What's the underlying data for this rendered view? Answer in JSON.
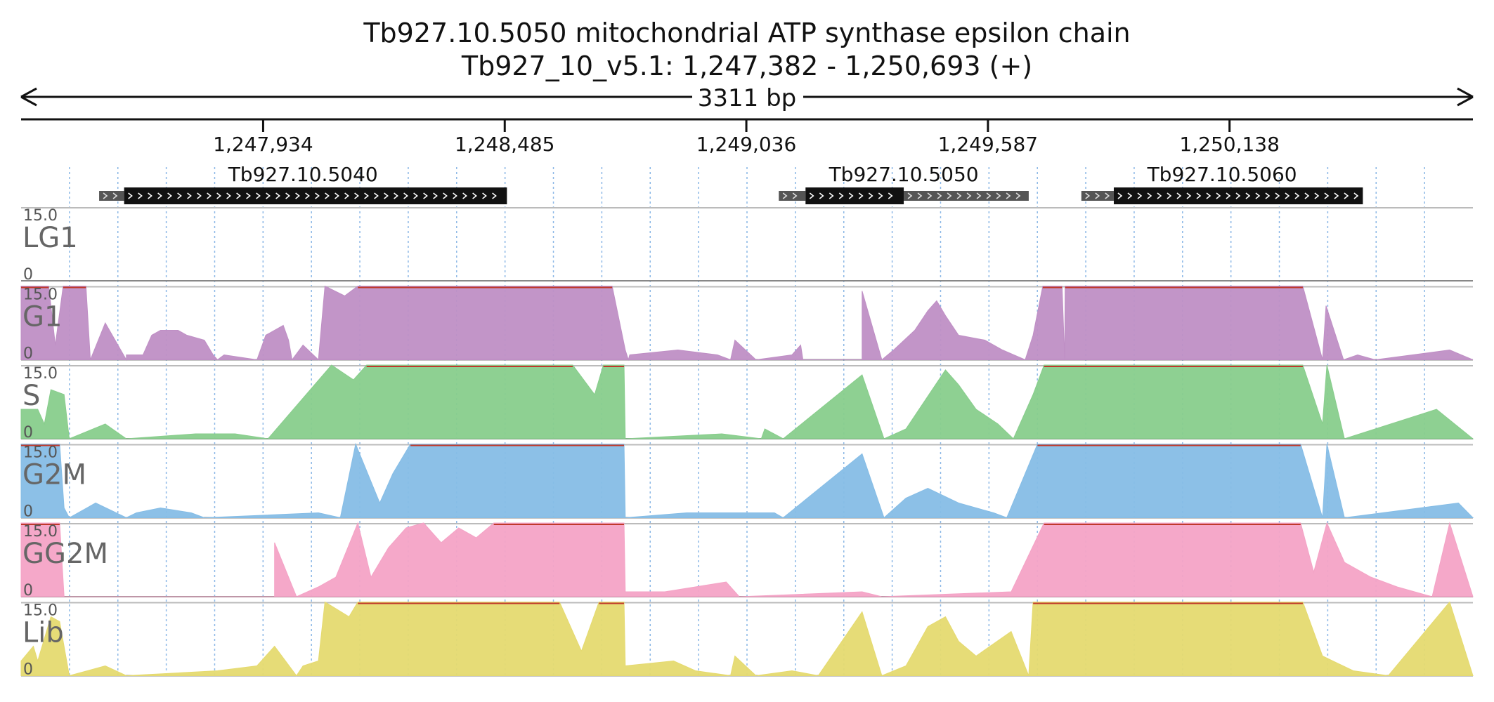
{
  "header": {
    "title": "Tb927.10.5050  mitochondrial ATP synthase epsilon chain",
    "subtitle": "Tb927_10_v5.1: 1,247,382 - 1,250,693 (+)",
    "span_label": "3311 bp"
  },
  "chart_data": {
    "type": "area",
    "region": {
      "chrom": "Tb927_10_v5.1",
      "start": 1247382,
      "end": 1250693,
      "strand": "+"
    },
    "x_ticks": [
      {
        "value": 1247934,
        "label": "1,247,934"
      },
      {
        "value": 1248485,
        "label": "1,248,485"
      },
      {
        "value": 1249036,
        "label": "1,249,036"
      },
      {
        "value": 1249587,
        "label": "1,249,587"
      },
      {
        "value": 1250138,
        "label": "1,250,138"
      }
    ],
    "genes": [
      {
        "name": "Tb927.10.5040",
        "utr5": [
          1247560,
          1247617
        ],
        "cds": [
          1247617,
          1248490
        ],
        "utr3": null
      },
      {
        "name": "Tb927.10.5050",
        "utr5": [
          1249110,
          1249171
        ],
        "cds": [
          1249171,
          1249395
        ],
        "utr3": [
          1249395,
          1249680
        ]
      },
      {
        "name": "Tb927.10.5060",
        "utr5": [
          1249800,
          1249874
        ],
        "cds": [
          1249874,
          1250442
        ],
        "utr3": null
      }
    ],
    "ylim": [
      0,
      15
    ],
    "y_max_label": "15.0",
    "y_min_label": "0",
    "series": [
      {
        "name": "LG1",
        "color": "#bf8fc5",
        "points": []
      },
      {
        "name": "G1",
        "color": "#bf8fc5",
        "points": [
          [
            1247382,
            15
          ],
          [
            1247445,
            15
          ],
          [
            1247460,
            3
          ],
          [
            1247478,
            15
          ],
          [
            1247530,
            15
          ],
          [
            1247540,
            0
          ],
          [
            1247574,
            7.5
          ],
          [
            1247622,
            0
          ],
          [
            1247622,
            1
          ],
          [
            1247660,
            1
          ],
          [
            1247680,
            5
          ],
          [
            1247700,
            6
          ],
          [
            1247740,
            6
          ],
          [
            1247760,
            5
          ],
          [
            1247800,
            4
          ],
          [
            1247820,
            1
          ],
          [
            1247830,
            0
          ],
          [
            1247845,
            1
          ],
          [
            1247920,
            0
          ],
          [
            1247940,
            5
          ],
          [
            1247980,
            7
          ],
          [
            1247992,
            4
          ],
          [
            1248000,
            0
          ],
          [
            1248025,
            3
          ],
          [
            1248060,
            0
          ],
          [
            1248075,
            15
          ],
          [
            1248120,
            13
          ],
          [
            1248150,
            15
          ],
          [
            1248730,
            15
          ],
          [
            1248760,
            2
          ],
          [
            1248767,
            0
          ],
          [
            1248770,
            1
          ],
          [
            1248880,
            2
          ],
          [
            1248970,
            1
          ],
          [
            1249000,
            0
          ],
          [
            1249010,
            4
          ],
          [
            1249058,
            0
          ],
          [
            1249140,
            1
          ],
          [
            1249160,
            3
          ],
          [
            1249165,
            0
          ],
          [
            1249300,
            0
          ],
          [
            1249300,
            14
          ],
          [
            1249345,
            0
          ],
          [
            1249372,
            2
          ],
          [
            1249420,
            6
          ],
          [
            1249450,
            10
          ],
          [
            1249470,
            12
          ],
          [
            1249490,
            9
          ],
          [
            1249520,
            5
          ],
          [
            1249580,
            4
          ],
          [
            1249620,
            2
          ],
          [
            1249672,
            0
          ],
          [
            1249690,
            5
          ],
          [
            1249712,
            15
          ],
          [
            1249756,
            15
          ],
          [
            1249762,
            0
          ],
          [
            1249763,
            15
          ],
          [
            1250305,
            15
          ],
          [
            1250350,
            0
          ],
          [
            1250358,
            11
          ],
          [
            1250398,
            0
          ],
          [
            1250430,
            1
          ],
          [
            1250470,
            0
          ],
          [
            1250640,
            2
          ],
          [
            1250693,
            0
          ]
        ]
      },
      {
        "name": "S",
        "color": "#88cd8c",
        "points": [
          [
            1247382,
            6
          ],
          [
            1247420,
            6
          ],
          [
            1247435,
            3
          ],
          [
            1247450,
            10
          ],
          [
            1247480,
            9
          ],
          [
            1247492,
            0
          ],
          [
            1247574,
            3
          ],
          [
            1247622,
            0
          ],
          [
            1247780,
            1
          ],
          [
            1247870,
            1
          ],
          [
            1247945,
            0
          ],
          [
            1248090,
            15
          ],
          [
            1248140,
            12
          ],
          [
            1248170,
            15
          ],
          [
            1248640,
            15
          ],
          [
            1248690,
            9
          ],
          [
            1248710,
            15
          ],
          [
            1248757,
            15
          ],
          [
            1248760,
            0
          ],
          [
            1248980,
            1
          ],
          [
            1249070,
            0
          ],
          [
            1249078,
            2
          ],
          [
            1249120,
            0
          ],
          [
            1249300,
            13
          ],
          [
            1249350,
            0
          ],
          [
            1249400,
            2
          ],
          [
            1249460,
            10
          ],
          [
            1249490,
            14
          ],
          [
            1249520,
            11
          ],
          [
            1249560,
            6
          ],
          [
            1249610,
            3
          ],
          [
            1249645,
            0
          ],
          [
            1249690,
            9
          ],
          [
            1249715,
            15
          ],
          [
            1249763,
            15
          ],
          [
            1250305,
            15
          ],
          [
            1250350,
            3
          ],
          [
            1250360,
            15
          ],
          [
            1250400,
            0
          ],
          [
            1250610,
            6
          ],
          [
            1250693,
            0
          ]
        ]
      },
      {
        "name": "G2M",
        "color": "#86bde6",
        "points": [
          [
            1247382,
            15
          ],
          [
            1247470,
            15
          ],
          [
            1247480,
            2
          ],
          [
            1247492,
            0
          ],
          [
            1247552,
            3
          ],
          [
            1247622,
            0
          ],
          [
            1247645,
            1
          ],
          [
            1247700,
            2
          ],
          [
            1247770,
            1
          ],
          [
            1247800,
            0
          ],
          [
            1248060,
            1
          ],
          [
            1248110,
            0
          ],
          [
            1248145,
            15
          ],
          [
            1248200,
            3
          ],
          [
            1248230,
            9
          ],
          [
            1248270,
            15
          ],
          [
            1248757,
            15
          ],
          [
            1248760,
            0
          ],
          [
            1248900,
            1
          ],
          [
            1249100,
            1
          ],
          [
            1249120,
            0
          ],
          [
            1249300,
            13
          ],
          [
            1249350,
            0
          ],
          [
            1249400,
            4
          ],
          [
            1249450,
            6
          ],
          [
            1249520,
            3
          ],
          [
            1249600,
            1
          ],
          [
            1249630,
            0
          ],
          [
            1249700,
            15
          ],
          [
            1249763,
            15
          ],
          [
            1250300,
            15
          ],
          [
            1250350,
            0
          ],
          [
            1250360,
            15
          ],
          [
            1250400,
            0
          ],
          [
            1250660,
            3
          ],
          [
            1250693,
            0
          ]
        ]
      },
      {
        "name": "GG2M",
        "color": "#f4a3c6",
        "points": [
          [
            1247382,
            15
          ],
          [
            1247470,
            15
          ],
          [
            1247480,
            0
          ],
          [
            1247960,
            0
          ],
          [
            1247960,
            11
          ],
          [
            1248010,
            0
          ],
          [
            1248060,
            2
          ],
          [
            1248100,
            4
          ],
          [
            1248150,
            15
          ],
          [
            1248180,
            4
          ],
          [
            1248220,
            10
          ],
          [
            1248260,
            14
          ],
          [
            1248300,
            15
          ],
          [
            1248340,
            11
          ],
          [
            1248380,
            14
          ],
          [
            1248420,
            12
          ],
          [
            1248460,
            15
          ],
          [
            1248757,
            15
          ],
          [
            1248760,
            1
          ],
          [
            1248850,
            1
          ],
          [
            1248990,
            3
          ],
          [
            1249020,
            0
          ],
          [
            1249300,
            1
          ],
          [
            1249345,
            0
          ],
          [
            1249640,
            1
          ],
          [
            1249715,
            15
          ],
          [
            1249763,
            15
          ],
          [
            1250300,
            15
          ],
          [
            1250330,
            5
          ],
          [
            1250360,
            15
          ],
          [
            1250400,
            7
          ],
          [
            1250460,
            4
          ],
          [
            1250520,
            2
          ],
          [
            1250600,
            0
          ],
          [
            1250640,
            15
          ],
          [
            1250693,
            0
          ]
        ]
      },
      {
        "name": "Lib",
        "color": "#e5da70",
        "points": [
          [
            1247382,
            3
          ],
          [
            1247410,
            6
          ],
          [
            1247420,
            3
          ],
          [
            1247450,
            12
          ],
          [
            1247470,
            11
          ],
          [
            1247492,
            0
          ],
          [
            1247574,
            2
          ],
          [
            1247622,
            0
          ],
          [
            1247830,
            1
          ],
          [
            1247920,
            2
          ],
          [
            1247960,
            6
          ],
          [
            1248010,
            0
          ],
          [
            1248025,
            2
          ],
          [
            1248060,
            3
          ],
          [
            1248075,
            15
          ],
          [
            1248130,
            12
          ],
          [
            1248150,
            15
          ],
          [
            1248610,
            15
          ],
          [
            1248660,
            5
          ],
          [
            1248700,
            15
          ],
          [
            1248757,
            15
          ],
          [
            1248760,
            2
          ],
          [
            1248870,
            3
          ],
          [
            1248920,
            1
          ],
          [
            1249000,
            0
          ],
          [
            1249010,
            4
          ],
          [
            1249058,
            0
          ],
          [
            1249140,
            1
          ],
          [
            1249200,
            0
          ],
          [
            1249300,
            13
          ],
          [
            1249345,
            0
          ],
          [
            1249400,
            2
          ],
          [
            1249450,
            10
          ],
          [
            1249490,
            12
          ],
          [
            1249520,
            7
          ],
          [
            1249560,
            4
          ],
          [
            1249640,
            9
          ],
          [
            1249680,
            0
          ],
          [
            1249690,
            15
          ],
          [
            1249763,
            15
          ],
          [
            1250305,
            15
          ],
          [
            1250350,
            4
          ],
          [
            1250420,
            1
          ],
          [
            1250500,
            0
          ],
          [
            1250640,
            15
          ],
          [
            1250693,
            0
          ]
        ]
      }
    ]
  }
}
